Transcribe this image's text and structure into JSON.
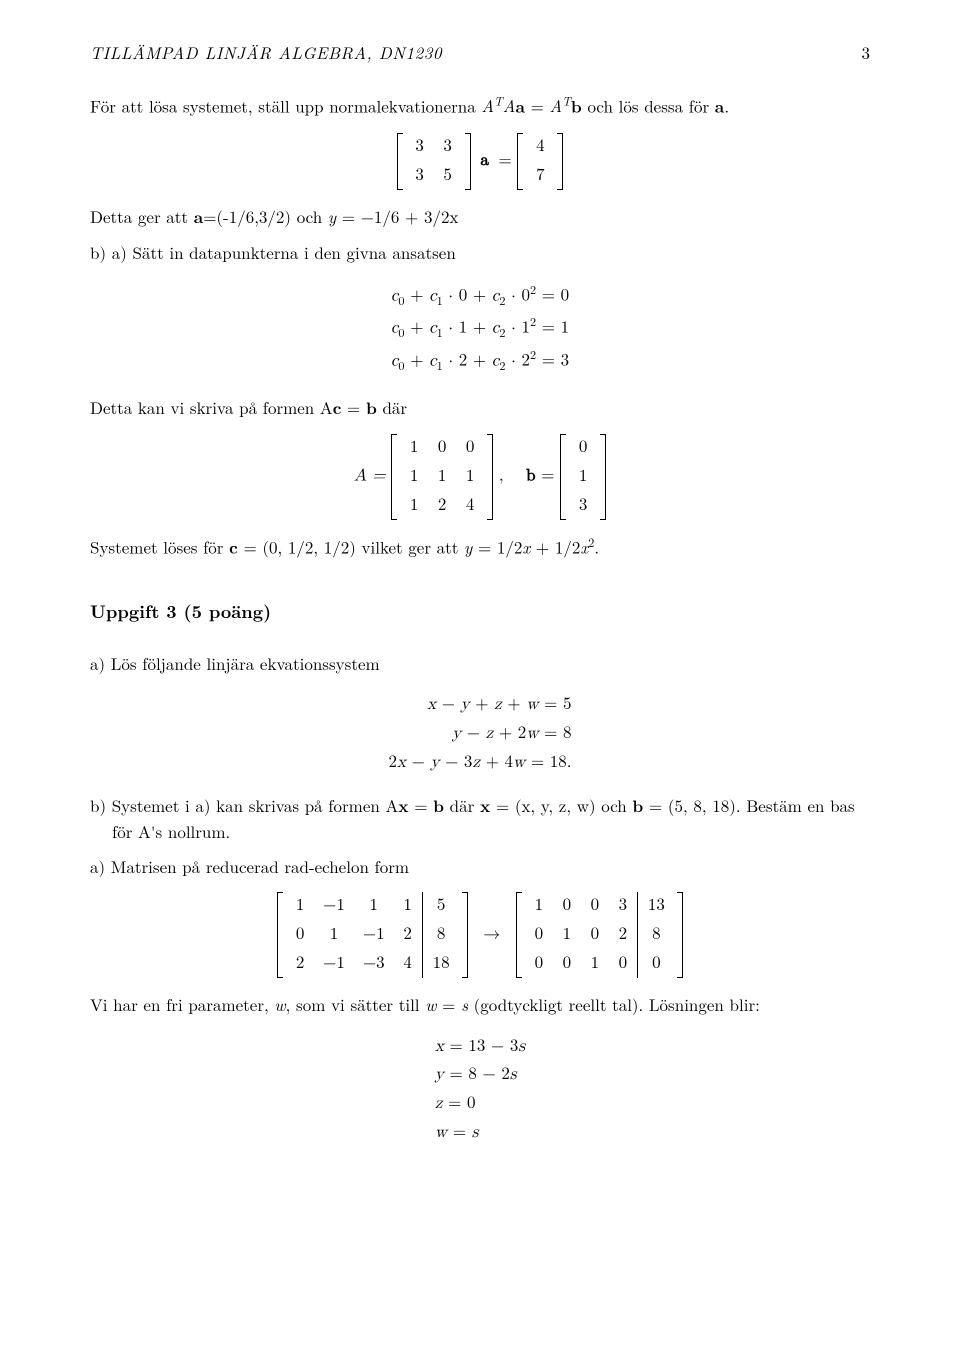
{
  "header": {
    "title": "TILLÄMPAD LINJÄR ALGEBRA, DN1230",
    "page": "3"
  },
  "intro_para": "För att lösa systemet, ställ upp normalekvationerna AᵀAa = Aᵀb och lös dessa för a.",
  "intro_para_plain": "För att lösa systemet, ställ upp normalekvationerna ",
  "normal_eq_lhs": "A",
  "normal_eq_tail": " och lös dessa för ",
  "matrix33": {
    "rows": [
      [
        "3",
        "3"
      ],
      [
        "3",
        "5"
      ]
    ]
  },
  "matrix47": {
    "rows": [
      [
        "4"
      ],
      [
        "7"
      ]
    ]
  },
  "line_detta_ger_prefix": "Detta ger att ",
  "line_detta_ger_mid": "=(-1/6,3/2) och ",
  "line_detta_ger_tail": " = −1/6 + 3/2x",
  "line_b_a": "b) a) Sätt in datapunkterna i den givna ansatsen",
  "sys1": {
    "eq1": "c₀ + c₁ · 0 + c₂ · 0² = 0",
    "eq2": "c₀ + c₁ · 1 + c₂ · 1² = 1",
    "eq3": "c₀ + c₁ · 2 + c₂ · 2² = 3"
  },
  "line_form_prefix": "Detta kan vi skriva på formen A",
  "line_form_mid": " = ",
  "line_form_tail": " där",
  "matrixA": {
    "rows": [
      [
        "1",
        "0",
        "0"
      ],
      [
        "1",
        "1",
        "1"
      ],
      [
        "1",
        "2",
        "4"
      ]
    ]
  },
  "matrixb": {
    "rows": [
      [
        "0"
      ],
      [
        "1"
      ],
      [
        "3"
      ]
    ]
  },
  "A_eq": "A = ",
  "comma_b_eq": ",    b = ",
  "line_system_solve_prefix": "Systemet löses för ",
  "line_system_solve_mid": " = (0, 1/2, 1/2) vilket ger att ",
  "line_system_solve_tail": " = 1/2x + 1/2x².",
  "heading3": "Uppgift 3 (5 poäng)",
  "item_a": "a) Lös följande linjära ekvationssystem",
  "sys2": {
    "eq1": "x − y + z + w = 5",
    "eq2": "y − z + 2w = 8",
    "eq3": "2x − y − 3z + 4w = 18."
  },
  "item_b_prefix": "b) Systemet i a) kan skrivas på formen A",
  "item_b_mid1": " = ",
  "item_b_mid2": " där ",
  "item_b_mid3": " = (x, y, z, w) och ",
  "item_b_tail": " = (5, 8, 18). Bestäm en bas för A's nollrum.",
  "line_rre": "a) Matrisen på reducerad rad-echelon form",
  "augL": {
    "rows": [
      [
        "1",
        "−1",
        "1",
        "1",
        "5"
      ],
      [
        "0",
        "1",
        "−1",
        "2",
        "8"
      ],
      [
        "2",
        "−1",
        "−3",
        "4",
        "18"
      ]
    ],
    "aug_at": 4
  },
  "augR": {
    "rows": [
      [
        "1",
        "0",
        "0",
        "3",
        "13"
      ],
      [
        "0",
        "1",
        "0",
        "2",
        "8"
      ],
      [
        "0",
        "0",
        "1",
        "0",
        "0"
      ]
    ],
    "aug_at": 4
  },
  "arrow": "→",
  "line_free_prefix": "Vi har en fri parameter, ",
  "line_free_mid1": ", som vi sätter till ",
  "line_free_mid2": " = ",
  "line_free_tail": " (godtyckligt reellt tal). Lösningen blir:",
  "sol": {
    "eq1": "x = 13 − 3s",
    "eq2": "y = 8 − 2s",
    "eq3": "z = 0",
    "eq4": "w = s"
  },
  "vars": {
    "a": "a",
    "b": "b",
    "c": "c",
    "x": "x",
    "y": "y",
    "w": "w",
    "s": "s",
    "A": "A",
    "T": "T"
  }
}
